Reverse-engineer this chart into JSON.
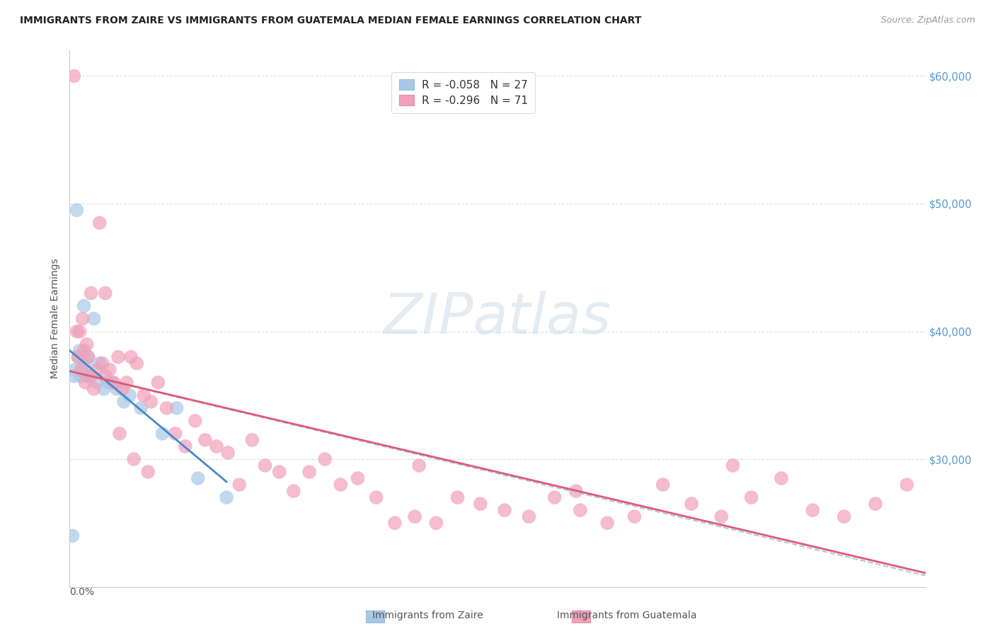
{
  "title": "IMMIGRANTS FROM ZAIRE VS IMMIGRANTS FROM GUATEMALA MEDIAN FEMALE EARNINGS CORRELATION CHART",
  "source": "Source: ZipAtlas.com",
  "ylabel": "Median Female Earnings",
  "zaire_color": "#a8c8e8",
  "zaire_line_color": "#4488cc",
  "guatemala_color": "#f0a0b8",
  "guatemala_line_color": "#e05878",
  "dash_line_color": "#b0c8d8",
  "zaire_R": -0.058,
  "zaire_N": 27,
  "guatemala_R": -0.296,
  "guatemala_N": 71,
  "xmin": 0.0,
  "xmax": 0.6,
  "ymin": 20000,
  "ymax": 62000,
  "background_color": "#ffffff",
  "grid_color": "#d0d8e8",
  "zaire_scatter_x": [
    0.002,
    0.003,
    0.004,
    0.005,
    0.006,
    0.007,
    0.008,
    0.009,
    0.01,
    0.011,
    0.012,
    0.013,
    0.015,
    0.017,
    0.019,
    0.021,
    0.024,
    0.027,
    0.03,
    0.033,
    0.038,
    0.042,
    0.05,
    0.065,
    0.075,
    0.09,
    0.11
  ],
  "zaire_scatter_y": [
    24000,
    36500,
    37000,
    49500,
    38000,
    38500,
    36500,
    37000,
    42000,
    37500,
    36500,
    38000,
    36500,
    41000,
    36000,
    37500,
    35500,
    36000,
    36000,
    35500,
    34500,
    35000,
    34000,
    32000,
    34000,
    28500,
    27000
  ],
  "guatemala_scatter_x": [
    0.003,
    0.005,
    0.006,
    0.007,
    0.008,
    0.009,
    0.01,
    0.011,
    0.012,
    0.013,
    0.015,
    0.017,
    0.019,
    0.021,
    0.023,
    0.025,
    0.028,
    0.031,
    0.034,
    0.037,
    0.04,
    0.043,
    0.047,
    0.052,
    0.057,
    0.062,
    0.068,
    0.074,
    0.081,
    0.088,
    0.095,
    0.103,
    0.111,
    0.119,
    0.128,
    0.137,
    0.147,
    0.157,
    0.168,
    0.179,
    0.19,
    0.202,
    0.215,
    0.228,
    0.242,
    0.257,
    0.272,
    0.288,
    0.305,
    0.322,
    0.34,
    0.358,
    0.377,
    0.396,
    0.416,
    0.436,
    0.457,
    0.478,
    0.499,
    0.521,
    0.543,
    0.565,
    0.587,
    0.015,
    0.025,
    0.035,
    0.045,
    0.055,
    0.245,
    0.355,
    0.465
  ],
  "guatemala_scatter_y": [
    60000,
    40000,
    38000,
    40000,
    37000,
    41000,
    38500,
    36000,
    39000,
    38000,
    36500,
    35500,
    37000,
    48500,
    37500,
    43000,
    37000,
    36000,
    38000,
    35500,
    36000,
    38000,
    37500,
    35000,
    34500,
    36000,
    34000,
    32000,
    31000,
    33000,
    31500,
    31000,
    30500,
    28000,
    31500,
    29500,
    29000,
    27500,
    29000,
    30000,
    28000,
    28500,
    27000,
    25000,
    25500,
    25000,
    27000,
    26500,
    26000,
    25500,
    27000,
    26000,
    25000,
    25500,
    28000,
    26500,
    25500,
    27000,
    28500,
    26000,
    25500,
    26500,
    28000,
    43000,
    36500,
    32000,
    30000,
    29000,
    29500,
    27500,
    29500
  ]
}
